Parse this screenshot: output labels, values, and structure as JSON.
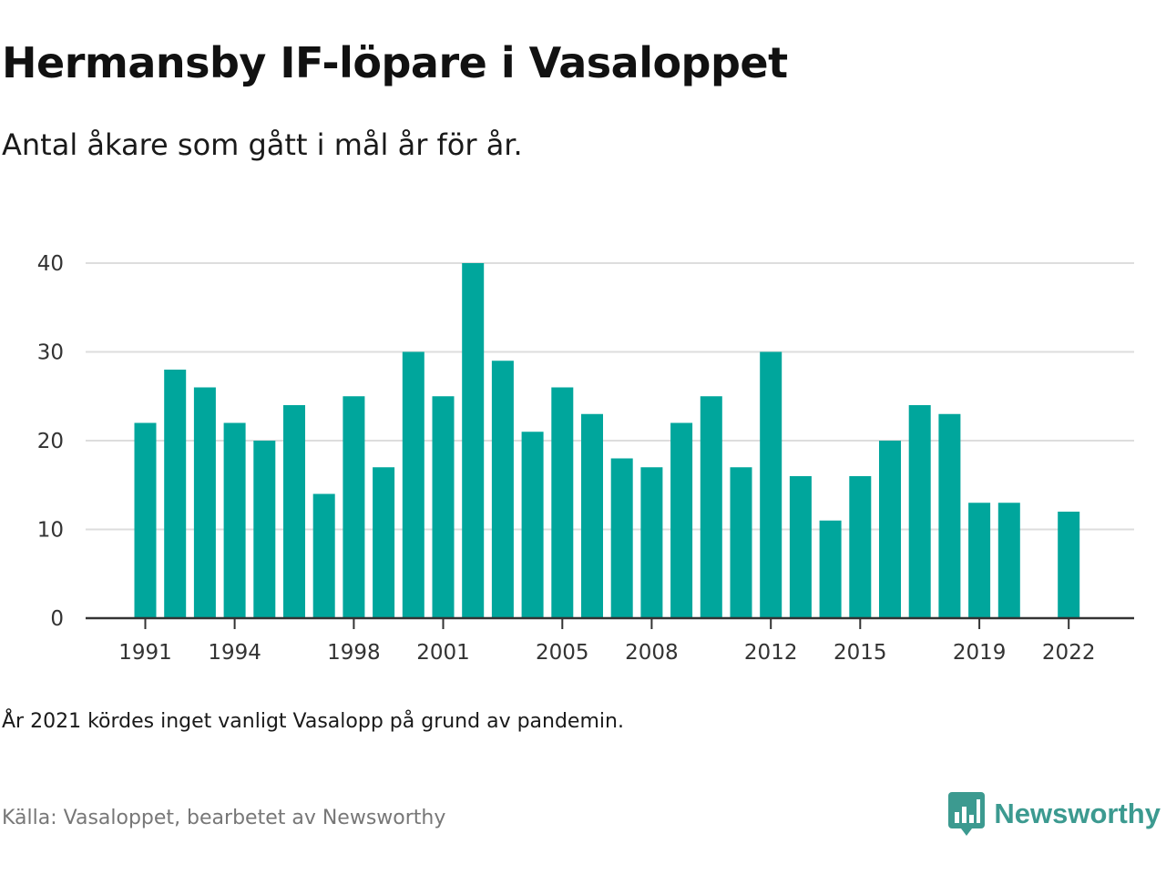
{
  "title": "Hermansby IF-löpare i Vasaloppet",
  "subtitle": "Antal åkare som gått i mål år för år.",
  "footnote": "År 2021 kördes inget vanligt Vasalopp på grund av pandemin.",
  "source": "Källa: Vasaloppet, bearbetet av Newsworthy",
  "brand": {
    "name": "Newsworthy",
    "icon": "newsworthy-logo-icon",
    "color": "#3c9a90"
  },
  "chart_data": {
    "type": "bar",
    "x": [
      1991,
      1992,
      1993,
      1994,
      1995,
      1996,
      1997,
      1998,
      1999,
      2000,
      2001,
      2002,
      2003,
      2004,
      2005,
      2006,
      2007,
      2008,
      2009,
      2010,
      2011,
      2012,
      2013,
      2014,
      2015,
      2016,
      2017,
      2018,
      2019,
      2020,
      2021,
      2022
    ],
    "values": [
      22,
      28,
      26,
      22,
      20,
      24,
      14,
      25,
      17,
      30,
      25,
      40,
      29,
      21,
      26,
      23,
      18,
      17,
      22,
      25,
      17,
      30,
      16,
      11,
      16,
      20,
      24,
      23,
      13,
      13,
      null,
      12
    ],
    "x_tick_labels": [
      "1991",
      "1994",
      "1998",
      "2001",
      "2005",
      "2008",
      "2012",
      "2015",
      "2019",
      "2022"
    ],
    "y_ticks": [
      0,
      10,
      20,
      30,
      40
    ],
    "ylim": [
      0,
      40
    ],
    "grid": "horizontal",
    "bar_color": "#00a69c",
    "xlabel": "",
    "ylabel": ""
  }
}
